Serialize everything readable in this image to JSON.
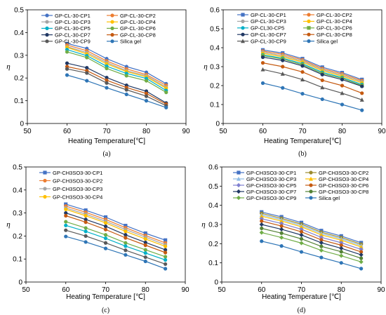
{
  "chart_data": [
    {
      "type": "line",
      "panel_label": "(a)",
      "xlabel": "Heating Temperature[℃]",
      "ylabel": "η",
      "xlim": [
        50,
        90
      ],
      "ylim": [
        0,
        0.5
      ],
      "xticks": [
        50,
        60,
        70,
        80,
        90
      ],
      "yticks": [
        0,
        0.1,
        0.2,
        0.3,
        0.4,
        0.5
      ],
      "ytick_labels": [
        "0",
        "0.1",
        "0.2",
        "0.3",
        "0.4",
        "0.5"
      ],
      "grid": false,
      "legend": "top-inside-two-columns",
      "x": [
        60,
        65,
        70,
        75,
        80,
        85
      ],
      "series": [
        {
          "name": "GP-CL-30-CP1",
          "color": "#4472C4",
          "marker": "circle",
          "values": [
            0.352,
            0.33,
            0.285,
            0.25,
            0.225,
            0.175
          ]
        },
        {
          "name": "GP-CL-30-CP2",
          "color": "#ED7D31",
          "marker": "circle",
          "values": [
            0.345,
            0.32,
            0.275,
            0.24,
            0.215,
            0.168
          ]
        },
        {
          "name": "GP-CL-30-CP3",
          "color": "#A5A5A5",
          "marker": "circle",
          "values": [
            0.338,
            0.312,
            0.268,
            0.232,
            0.21,
            0.16
          ]
        },
        {
          "name": "GP-CL-30-CP4",
          "color": "#FFC000",
          "marker": "circle",
          "values": [
            0.335,
            0.306,
            0.262,
            0.228,
            0.205,
            0.155
          ]
        },
        {
          "name": "GP-CL-30-CP5",
          "color": "#00B0C8",
          "marker": "circle",
          "values": [
            0.325,
            0.298,
            0.252,
            0.22,
            0.198,
            0.145
          ]
        },
        {
          "name": "GP-CL-30-CP6",
          "color": "#70AD47",
          "marker": "circle",
          "values": [
            0.315,
            0.29,
            0.242,
            0.21,
            0.188,
            0.137
          ]
        },
        {
          "name": "GP-CL-30-CP7",
          "color": "#203864",
          "marker": "circle",
          "values": [
            0.265,
            0.245,
            0.202,
            0.168,
            0.142,
            0.09
          ]
        },
        {
          "name": "GP-CL-30-CP8",
          "color": "#C55A11",
          "marker": "circle",
          "values": [
            0.25,
            0.232,
            0.19,
            0.158,
            0.132,
            0.085
          ]
        },
        {
          "name": "GP-CL-30-CP9",
          "color": "#595959",
          "marker": "circle",
          "values": [
            0.24,
            0.222,
            0.178,
            0.148,
            0.12,
            0.078
          ]
        },
        {
          "name": "Silica gel",
          "color": "#2E75B6",
          "marker": "circle",
          "values": [
            0.213,
            0.188,
            0.157,
            0.128,
            0.1,
            0.07
          ]
        }
      ]
    },
    {
      "type": "line",
      "panel_label": "(b)",
      "xlabel": "Heating Temperature[℃]",
      "ylabel": "η",
      "xlim": [
        50,
        90
      ],
      "ylim": [
        0,
        0.6
      ],
      "xticks": [
        50,
        60,
        70,
        80,
        90
      ],
      "yticks": [
        0,
        0.1,
        0.2,
        0.3,
        0.4,
        0.5,
        0.6
      ],
      "ytick_labels": [
        "0",
        "0.1",
        "0.2",
        "0.3",
        "0.4",
        "0.5",
        "0.6"
      ],
      "grid": false,
      "legend": "top-inside-two-columns",
      "x": [
        60,
        65,
        70,
        75,
        80,
        85
      ],
      "series": [
        {
          "name": "GP-CL-30-CP1",
          "color": "#4472C4",
          "marker": "square",
          "values": [
            0.388,
            0.372,
            0.342,
            0.297,
            0.268,
            0.232
          ]
        },
        {
          "name": "GP-CL-30-CP2",
          "color": "#ED7D31",
          "marker": "circle",
          "values": [
            0.382,
            0.365,
            0.336,
            0.29,
            0.262,
            0.226
          ]
        },
        {
          "name": "GP-CL-30-CP3",
          "color": "#A5A5A5",
          "marker": "circle",
          "values": [
            0.376,
            0.358,
            0.33,
            0.284,
            0.256,
            0.22
          ]
        },
        {
          "name": "GP-CL-30-CP4",
          "color": "#FFC000",
          "marker": "circle",
          "values": [
            0.37,
            0.352,
            0.324,
            0.278,
            0.25,
            0.214
          ]
        },
        {
          "name": "GP-CL30-CP5",
          "color": "#00B0C8",
          "marker": "circle",
          "values": [
            0.362,
            0.345,
            0.316,
            0.27,
            0.243,
            0.206
          ]
        },
        {
          "name": "GP-CL-30-CP6",
          "color": "#70AD47",
          "marker": "square",
          "values": [
            0.358,
            0.34,
            0.31,
            0.264,
            0.238,
            0.2
          ]
        },
        {
          "name": "GP-CL-30-CP7",
          "color": "#203864",
          "marker": "circle",
          "values": [
            0.35,
            0.333,
            0.304,
            0.258,
            0.232,
            0.196
          ]
        },
        {
          "name": "GP-CL-30-CP8",
          "color": "#C55A11",
          "marker": "circle",
          "values": [
            0.32,
            0.3,
            0.272,
            0.228,
            0.2,
            0.16
          ]
        },
        {
          "name": "GP-CL-30-CP9",
          "color": "#595959",
          "marker": "triangle",
          "values": [
            0.285,
            0.262,
            0.232,
            0.19,
            0.16,
            0.125
          ]
        },
        {
          "name": "Silica gel",
          "color": "#2E75B6",
          "marker": "circle",
          "values": [
            0.213,
            0.188,
            0.157,
            0.128,
            0.1,
            0.07
          ]
        }
      ]
    },
    {
      "type": "line",
      "panel_label": "(c)",
      "xlabel": "Heating Temperature [℃]",
      "ylabel": "η",
      "xlim": [
        50,
        90
      ],
      "ylim": [
        0,
        0.5
      ],
      "xticks": [
        50,
        60,
        70,
        80,
        90
      ],
      "yticks": [
        0,
        0.1,
        0.2,
        0.3,
        0.4,
        0.5
      ],
      "ytick_labels": [
        "0",
        "0.1",
        "0.2",
        "0.3",
        "0.4",
        "0.5"
      ],
      "grid": false,
      "legend": "top-inside-one-column",
      "x": [
        60,
        65,
        70,
        75,
        80,
        85
      ],
      "series": [
        {
          "name": "GP-CH3SO3-30-CP1",
          "color": "#4472C4",
          "marker": "square",
          "values": [
            0.338,
            0.312,
            0.282,
            0.245,
            0.212,
            0.182
          ]
        },
        {
          "name": "GP-CH3SO3-30-CP2",
          "color": "#ED7D31",
          "marker": "circle",
          "values": [
            0.33,
            0.303,
            0.272,
            0.236,
            0.202,
            0.17
          ]
        },
        {
          "name": "GP-CH3SO3-30-CP3",
          "color": "#A5A5A5",
          "marker": "circle",
          "values": [
            0.322,
            0.295,
            0.264,
            0.228,
            0.195,
            0.162
          ]
        },
        {
          "name": "GP-CH3SO3-30-CP4",
          "color": "#FFC000",
          "marker": "circle",
          "values": [
            0.316,
            0.288,
            0.257,
            0.22,
            0.187,
            0.155
          ]
        },
        {
          "name": "",
          "color": "#203864",
          "marker": "circle",
          "values": [
            0.3,
            0.272,
            0.242,
            0.205,
            0.172,
            0.14
          ]
        },
        {
          "name": "",
          "color": "#C55A11",
          "marker": "circle",
          "values": [
            0.288,
            0.26,
            0.228,
            0.192,
            0.16,
            0.128
          ]
        },
        {
          "name": "",
          "color": "#70AD47",
          "marker": "circle",
          "values": [
            0.262,
            0.235,
            0.205,
            0.17,
            0.14,
            0.11
          ]
        },
        {
          "name": "",
          "color": "#00B0C8",
          "marker": "circle",
          "values": [
            0.246,
            0.22,
            0.19,
            0.156,
            0.126,
            0.096
          ]
        },
        {
          "name": "",
          "color": "#595959",
          "marker": "circle",
          "values": [
            0.225,
            0.2,
            0.17,
            0.138,
            0.108,
            0.078
          ]
        },
        {
          "name": "",
          "color": "#2E75B6",
          "marker": "circle",
          "values": [
            0.198,
            0.174,
            0.146,
            0.118,
            0.09,
            0.058
          ]
        }
      ]
    },
    {
      "type": "line",
      "panel_label": "(d)",
      "xlabel": "Heating Temperature [℃]",
      "ylabel": "η",
      "xlim": [
        50,
        90
      ],
      "ylim": [
        0,
        0.6
      ],
      "xticks": [
        50,
        60,
        70,
        80,
        90
      ],
      "yticks": [
        0,
        0.1,
        0.2,
        0.3,
        0.4,
        0.5,
        0.6
      ],
      "ytick_labels": [
        "0",
        "0.1",
        "0.2",
        "0.3",
        "0.4",
        "0.5",
        "0.6"
      ],
      "grid": false,
      "legend": "top-inside-two-columns",
      "x": [
        60,
        65,
        70,
        75,
        80,
        85
      ],
      "series": [
        {
          "name": "GP-CH3SO3-30-CP1",
          "color": "#4472C4",
          "marker": "square",
          "values": [
            0.365,
            0.34,
            0.31,
            0.268,
            0.24,
            0.205
          ]
        },
        {
          "name": "GP-CH3SO3-30-CP2",
          "color": "#9C8B2E",
          "marker": "circle",
          "values": [
            0.358,
            0.332,
            0.302,
            0.26,
            0.232,
            0.197
          ]
        },
        {
          "name": "GP-CH3SO3-30-CP3",
          "color": "#8FBCE6",
          "marker": "triangle",
          "values": [
            0.35,
            0.325,
            0.295,
            0.253,
            0.225,
            0.19
          ]
        },
        {
          "name": "GP-CH3SO3-30-CP4",
          "color": "#FFC000",
          "marker": "triangle",
          "values": [
            0.343,
            0.318,
            0.288,
            0.246,
            0.218,
            0.183
          ]
        },
        {
          "name": "GP-CH3SO3-30-CP5",
          "color": "#7F7FD0",
          "marker": "diamond",
          "values": [
            0.33,
            0.305,
            0.275,
            0.233,
            0.205,
            0.17
          ]
        },
        {
          "name": "GP-CH3SO3-30-CP6",
          "color": "#C55A11",
          "marker": "circle",
          "values": [
            0.318,
            0.292,
            0.262,
            0.22,
            0.192,
            0.157
          ]
        },
        {
          "name": "GP-CH3SO3-30-CP7",
          "color": "#203864",
          "marker": "diamond",
          "values": [
            0.3,
            0.275,
            0.245,
            0.205,
            0.176,
            0.142
          ]
        },
        {
          "name": "GP-CH3SO3-30-CP8",
          "color": "#548235",
          "marker": "circle",
          "values": [
            0.28,
            0.255,
            0.225,
            0.186,
            0.158,
            0.124
          ]
        },
        {
          "name": "GP-CH3SO3-30-CP9",
          "color": "#70AD47",
          "marker": "diamond",
          "values": [
            0.258,
            0.232,
            0.203,
            0.165,
            0.137,
            0.105
          ]
        },
        {
          "name": "Silica gel",
          "color": "#2E75B6",
          "marker": "circle",
          "values": [
            0.213,
            0.188,
            0.157,
            0.128,
            0.1,
            0.07
          ]
        }
      ]
    }
  ]
}
